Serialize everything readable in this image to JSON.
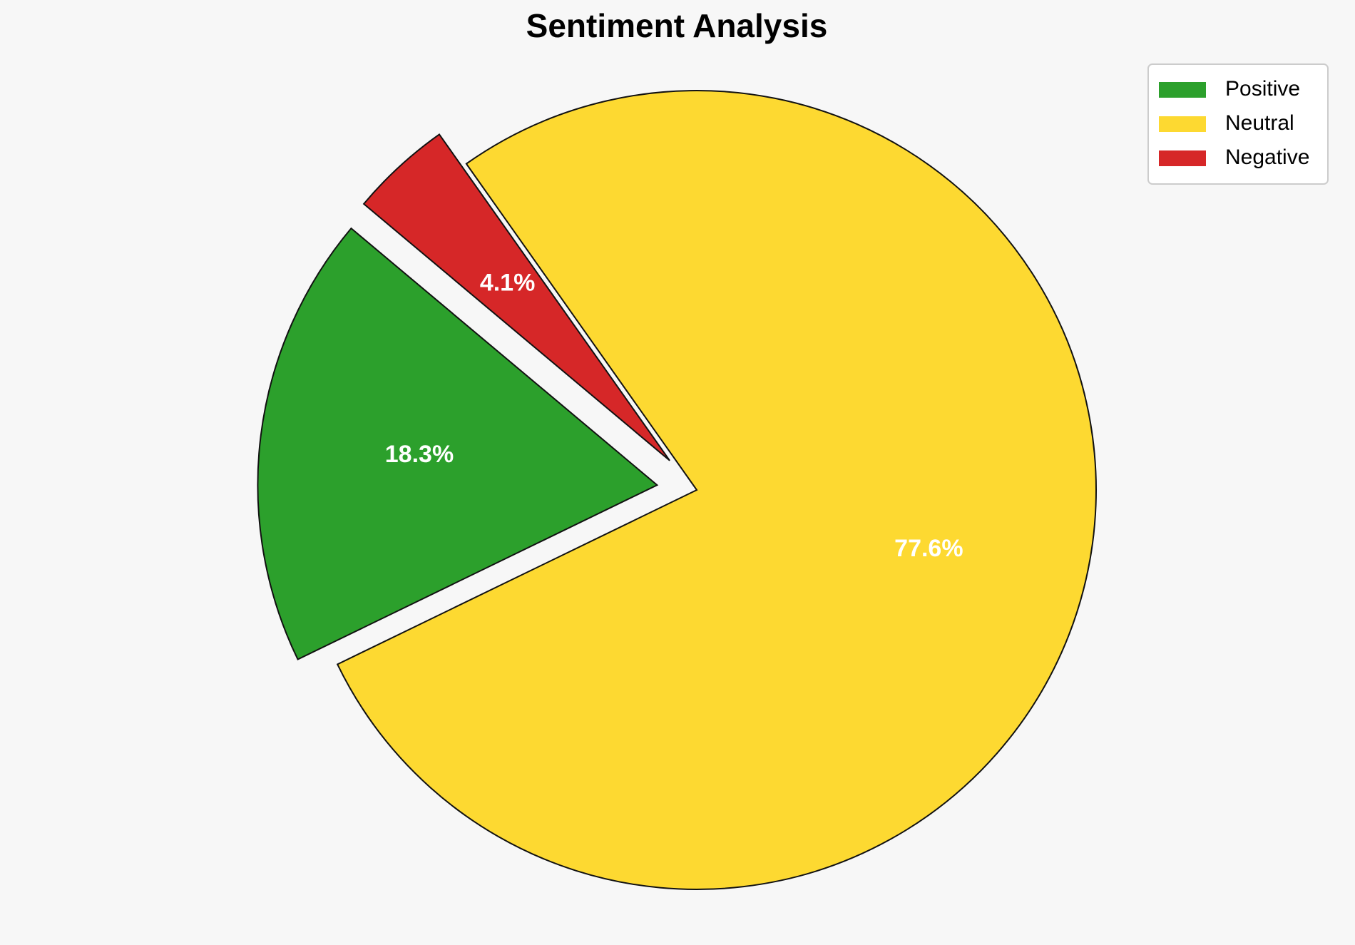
{
  "chart_data": {
    "type": "pie",
    "title": "Sentiment Analysis",
    "categories": [
      "Positive",
      "Neutral",
      "Negative"
    ],
    "values": [
      18.3,
      77.6,
      4.1
    ],
    "value_labels": [
      "18.3%",
      "77.6%",
      "4.1%"
    ],
    "colors": [
      "#2ca02c",
      "#fdd931",
      "#d62728"
    ],
    "legend": "upper right"
  }
}
